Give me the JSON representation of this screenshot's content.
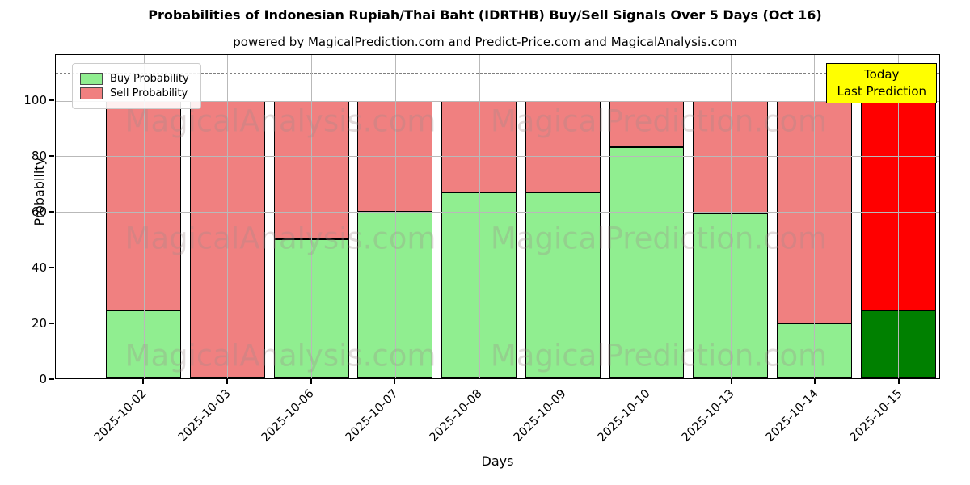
{
  "title": "Probabilities of Indonesian Rupiah/Thai Baht (IDRTHB) Buy/Sell Signals Over 5 Days (Oct 16)",
  "subtitle": "powered by MagicalPrediction.com and Predict-Price.com and MagicalAnalysis.com",
  "chart_data": {
    "type": "bar",
    "stacked": true,
    "categories": [
      "2025-10-02",
      "2025-10-03",
      "2025-10-06",
      "2025-10-07",
      "2025-10-08",
      "2025-10-09",
      "2025-10-10",
      "2025-10-13",
      "2025-10-14",
      "2025-10-15"
    ],
    "series": [
      {
        "name": "Buy Probability",
        "color": "#90EE90",
        "values": [
          24.5,
          0,
          50,
          60,
          67,
          67,
          83.3,
          59.5,
          19.7,
          24.5
        ]
      },
      {
        "name": "Sell Probability",
        "color": "#F08080",
        "values": [
          75.5,
          100,
          50,
          40,
          33,
          33,
          16.7,
          40.5,
          80.3,
          75.5
        ]
      }
    ],
    "highlight_last_bar": {
      "buy_color": "#008000",
      "sell_color": "#FF0000"
    },
    "xlabel": "Days",
    "ylabel": "Probability",
    "yticks": [
      0,
      20,
      40,
      60,
      80,
      100
    ],
    "ylim": [
      0,
      116.5
    ],
    "dashed_line_y": 110,
    "grid": true,
    "legend_position": "upper left"
  },
  "annotation": {
    "line1": "Today",
    "line2": "Last Prediction",
    "bg_color": "#FFFF00"
  },
  "watermark": {
    "left_text": "MagicalAnalysis.com",
    "right_text": "MagicalPrediction.com"
  }
}
